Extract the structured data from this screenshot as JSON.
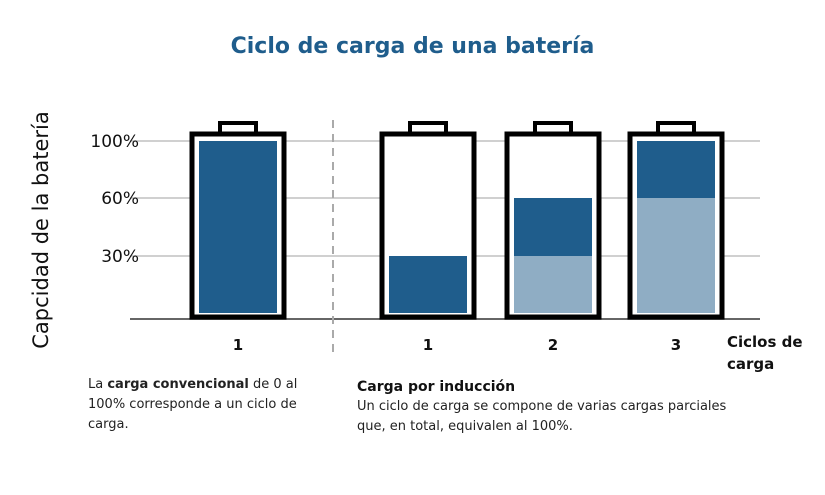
{
  "chart_data": {
    "type": "bar",
    "stacked": true,
    "title": "Ciclo de carga de una batería",
    "ylabel": "Capcidad de la batería",
    "xlabel": "Ciclos de carga",
    "yticks": [
      30,
      60,
      100
    ],
    "ytick_labels": [
      "30%",
      "60%",
      "100%"
    ],
    "ylim": [
      0,
      100
    ],
    "grid": true,
    "categories": [
      "1",
      "1",
      "2",
      "3"
    ],
    "groups": [
      "carga convencional",
      "carga convencional",
      "Carga por inducción",
      "Carga por inducción"
    ],
    "series": [
      {
        "values": [
          0,
          0,
          30,
          60
        ],
        "color": "#8fadc4"
      },
      {
        "values": [
          100,
          30,
          30,
          40
        ],
        "color": "#1f5d8c"
      }
    ]
  },
  "notes": {
    "conventional": {
      "prefix": "La ",
      "bold": "carga convencional",
      "suffix": " de 0 al 100% corresponde a un ciclo de carga."
    },
    "induction": {
      "heading": "Carga por inducción",
      "body": "Un ciclo de carga se compone de varias cargas parciales que, en total, equivalen al 100%."
    }
  }
}
